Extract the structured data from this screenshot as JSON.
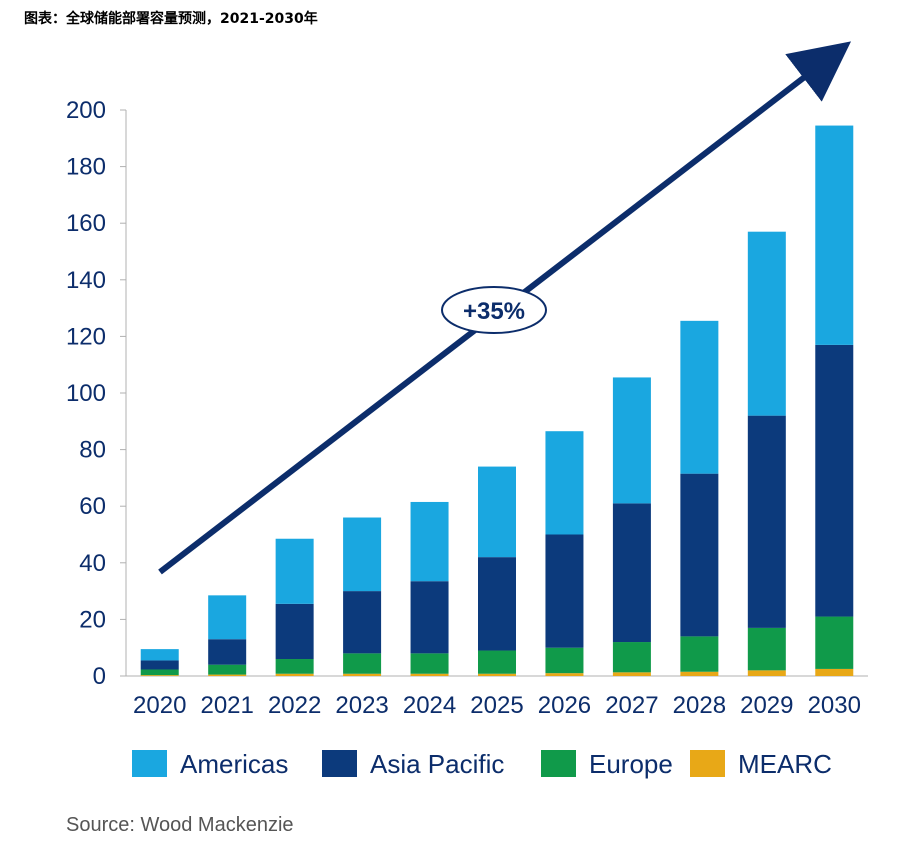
{
  "caption": "图表：全球储能部署容量预测，2021-2030年",
  "source": "Source: Wood Mackenzie",
  "annotation": "+35%",
  "colors": {
    "Americas": "#1aa7e0",
    "Asia Pacific": "#0c3a7c",
    "Europe": "#109a4a",
    "MEARC": "#e8a817",
    "axis_text": "#0c2d6b",
    "arrow": "#0c2d6b"
  },
  "chart_data": {
    "type": "bar",
    "stacked": true,
    "categories": [
      "2020",
      "2021",
      "2022",
      "2023",
      "2024",
      "2025",
      "2026",
      "2027",
      "2028",
      "2029",
      "2030"
    ],
    "series": [
      {
        "name": "MEARC",
        "values": [
          0.3,
          0.5,
          0.8,
          0.8,
          0.8,
          0.8,
          1.0,
          1.3,
          1.5,
          2.0,
          2.5
        ]
      },
      {
        "name": "Europe",
        "values": [
          2.0,
          3.5,
          5.2,
          7.2,
          7.2,
          8.2,
          9.0,
          10.7,
          12.5,
          15.0,
          18.5
        ]
      },
      {
        "name": "Asia Pacific",
        "values": [
          3.2,
          9.0,
          19.5,
          22.0,
          25.5,
          33.0,
          40.0,
          49.0,
          57.5,
          75.0,
          96.0
        ]
      },
      {
        "name": "Americas",
        "values": [
          4.0,
          15.5,
          23.0,
          26.0,
          28.0,
          32.0,
          36.5,
          44.5,
          54.0,
          65.0,
          77.5
        ]
      }
    ],
    "legend_order": [
      "Americas",
      "Asia Pacific",
      "Europe",
      "MEARC"
    ],
    "yticks": [
      "0",
      "20",
      "40",
      "60",
      "80",
      "100",
      "120",
      "140",
      "160",
      "180",
      "200"
    ],
    "ylim": [
      0,
      200
    ],
    "grid": false,
    "legend": "bottom"
  }
}
